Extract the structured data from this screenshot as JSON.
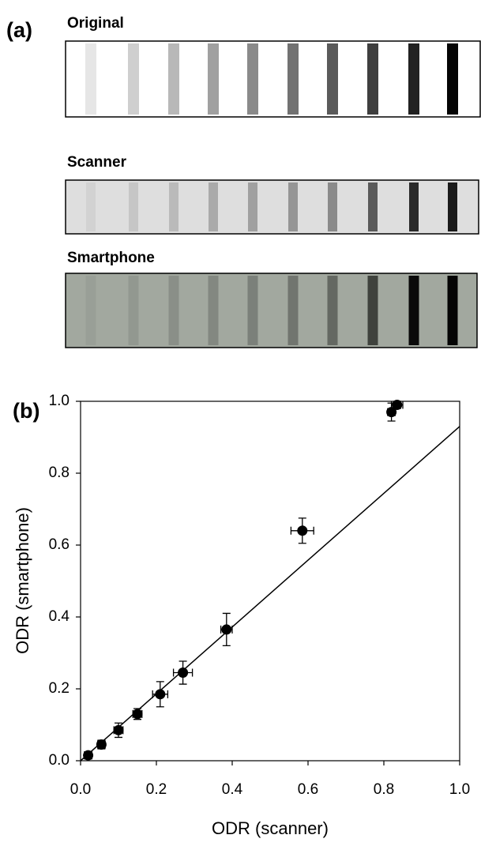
{
  "panel_a": {
    "label": "(a)",
    "strips": [
      "Original",
      "Scanner",
      "Smartphone"
    ]
  },
  "chart_data": {
    "type": "scatter",
    "label": "(b)",
    "x_label": "ODR (scanner)",
    "y_label": "ODR (smartphone)",
    "xlim": [
      0,
      1
    ],
    "ylim": [
      0,
      1
    ],
    "xticks": [
      {
        "value": 0,
        "label": "0.0"
      },
      0.2,
      0.4,
      0.6,
      0.8,
      {
        "value": 1,
        "label": "1.0"
      }
    ],
    "yticks": [
      {
        "value": 0,
        "label": "0.0"
      },
      0.2,
      0.4,
      0.6,
      0.8,
      {
        "value": 1,
        "label": "1.0"
      }
    ],
    "series": [
      {
        "type": "scatter",
        "color": "#000000",
        "x": [
          0.02,
          0.055,
          0.1,
          0.15,
          0.21,
          0.27,
          0.385,
          0.585,
          0.82,
          0.835
        ],
        "values": [
          0.015,
          0.045,
          0.085,
          0.13,
          0.185,
          0.245,
          0.365,
          0.64,
          0.97,
          0.99
        ],
        "xerr": [
          0.01,
          0.01,
          0.012,
          0.012,
          0.02,
          0.025,
          0.015,
          0.03,
          0.01,
          0.015
        ],
        "yerr": [
          0.01,
          0.012,
          0.02,
          0.015,
          0.035,
          0.032,
          0.045,
          0.035,
          0.025,
          0.01
        ]
      },
      {
        "type": "line",
        "color": "#000000",
        "x": [
          0,
          1
        ],
        "values": [
          0,
          0.93
        ]
      }
    ]
  }
}
